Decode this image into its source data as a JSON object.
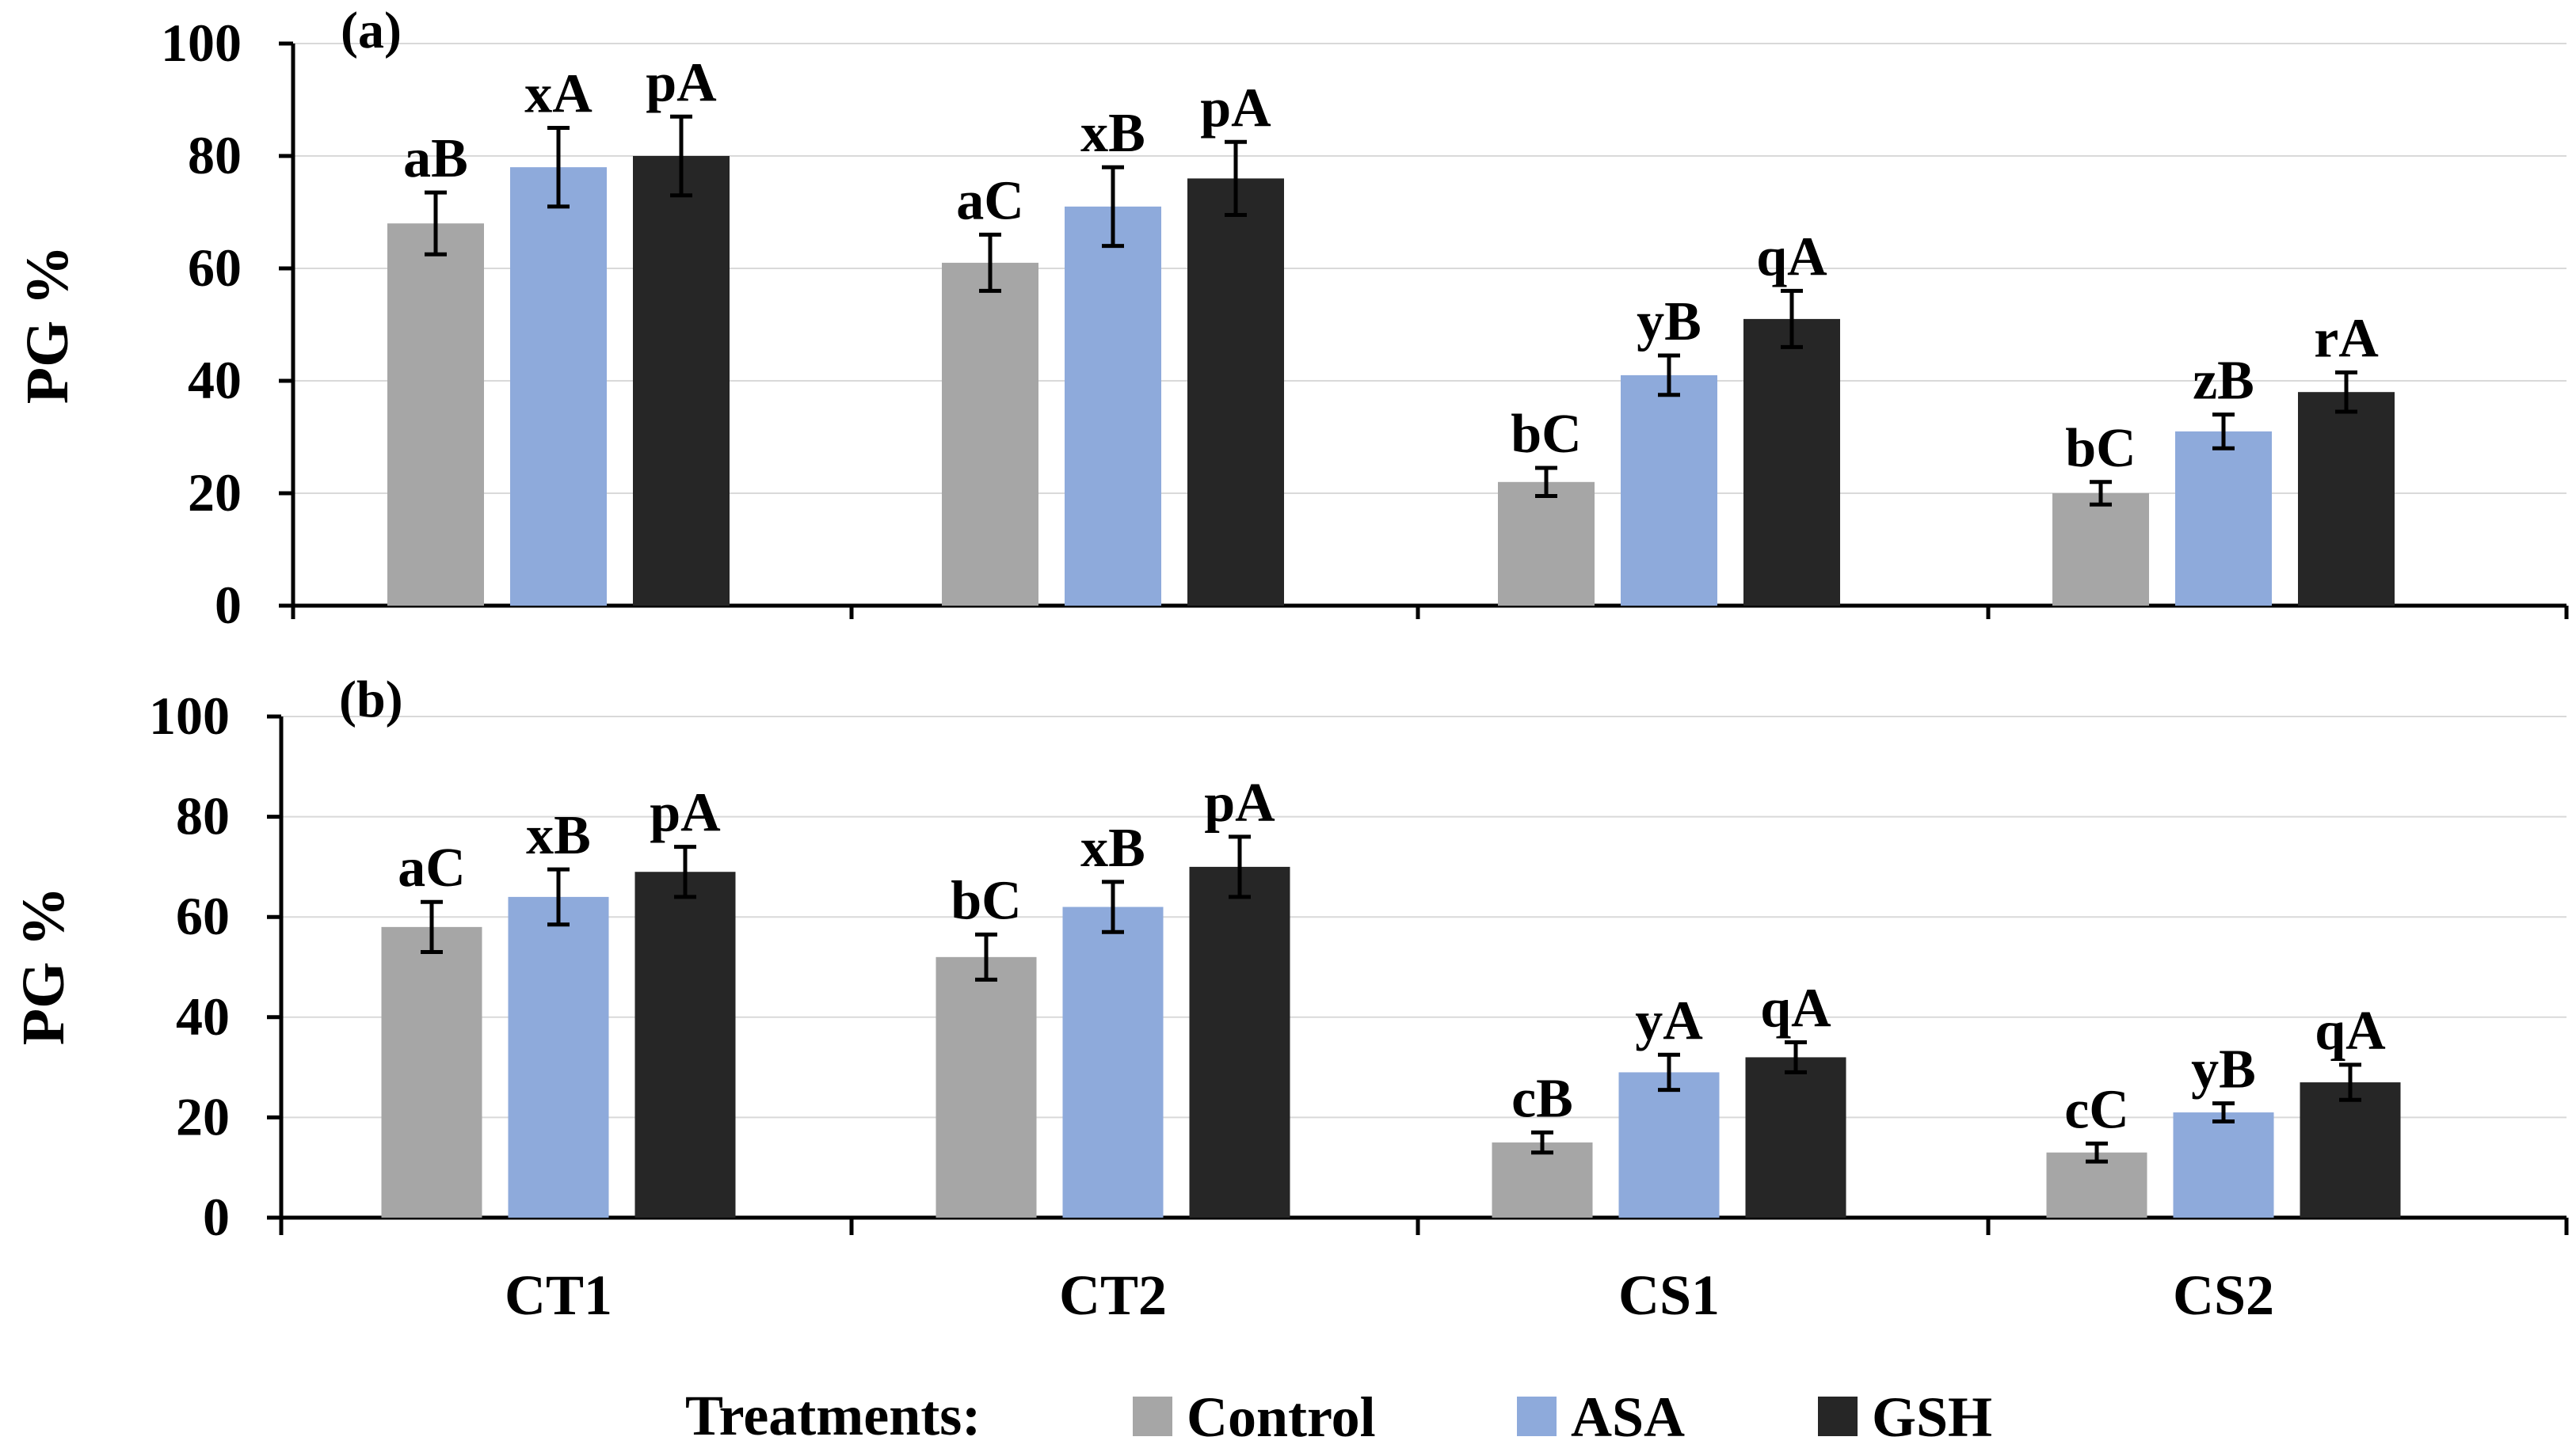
{
  "colors": {
    "Control": "#a6a6a6",
    "ASA": "#8eaadb",
    "GSH": "#262626",
    "axis": "#000000",
    "grid": "#d9d9d9"
  },
  "legend": {
    "title": "Treatments:",
    "placement": "bottom-center",
    "items": [
      {
        "name": "Control",
        "color": "#a6a6a6"
      },
      {
        "name": "ASA",
        "color": "#8eaadb"
      },
      {
        "name": "GSH",
        "color": "#262626"
      }
    ]
  },
  "chart_data": [
    {
      "type": "bar",
      "panel_label": "(a)",
      "ylabel": "PG %",
      "xlabel": "",
      "ylim": [
        0,
        100
      ],
      "yticks": [
        "0",
        "20",
        "40",
        "60",
        "80",
        "100"
      ],
      "grid": true,
      "categories": [
        "CT1",
        "CT2",
        "CS1",
        "CS2"
      ],
      "series": [
        {
          "name": "Control",
          "values": [
            68,
            61,
            22,
            20
          ],
          "errors": [
            5.5,
            5,
            2.5,
            2
          ],
          "labels": [
            "aB",
            "aC",
            "bC",
            "bC"
          ]
        },
        {
          "name": "ASA",
          "values": [
            78,
            71,
            41,
            31
          ],
          "errors": [
            7,
            7,
            3.5,
            3
          ],
          "labels": [
            "xA",
            "xB",
            "yB",
            "zB"
          ]
        },
        {
          "name": "GSH",
          "values": [
            80,
            76,
            51,
            38
          ],
          "errors": [
            7,
            6.5,
            5,
            3.5
          ],
          "labels": [
            "pA",
            "pA",
            "qA",
            "rA"
          ]
        }
      ]
    },
    {
      "type": "bar",
      "panel_label": "(b)",
      "ylabel": "PG %",
      "xlabel": "",
      "ylim": [
        0,
        100
      ],
      "yticks": [
        "0",
        "20",
        "40",
        "60",
        "80",
        "100"
      ],
      "grid": true,
      "categories": [
        "CT1",
        "CT2",
        "CS1",
        "CS2"
      ],
      "series": [
        {
          "name": "Control",
          "values": [
            58,
            52,
            15,
            13
          ],
          "errors": [
            5,
            4.5,
            2,
            1.8
          ],
          "labels": [
            "aC",
            "bC",
            "cB",
            "cC"
          ]
        },
        {
          "name": "ASA",
          "values": [
            64,
            62,
            29,
            21
          ],
          "errors": [
            5.5,
            5,
            3.5,
            1.8
          ],
          "labels": [
            "xB",
            "xB",
            "yA",
            "yB"
          ]
        },
        {
          "name": "GSH",
          "values": [
            69,
            70,
            32,
            27
          ],
          "errors": [
            5,
            6,
            3,
            3.5
          ],
          "labels": [
            "pA",
            "pA",
            "qA",
            "qA"
          ]
        }
      ]
    }
  ]
}
